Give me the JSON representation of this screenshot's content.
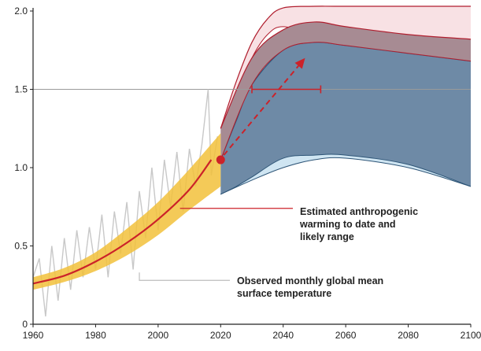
{
  "chart_data": {
    "type": "line",
    "title": "",
    "xlabel": "",
    "ylabel": "",
    "xlim": [
      1960,
      2100
    ],
    "ylim": [
      0,
      2.0
    ],
    "grid": false,
    "x_ticks": [
      "1960",
      "1980",
      "2000",
      "2020",
      "2040",
      "2060",
      "2080",
      "2100"
    ],
    "y_ticks": [
      "0",
      "0.5",
      "1.0",
      "1.5",
      "2.0"
    ],
    "reference_line": {
      "y": 1.5
    },
    "series": [
      {
        "role": "observed-monthly",
        "color": "#c8c8c8",
        "x": [
          1960,
          1962,
          1964,
          1966,
          1968,
          1970,
          1972,
          1974,
          1976,
          1978,
          1980,
          1982,
          1984,
          1986,
          1988,
          1990,
          1992,
          1994,
          1996,
          1998,
          2000,
          2002,
          2004,
          2006,
          2008,
          2010,
          2012,
          2014,
          2016,
          2017,
          2019
        ],
        "y": [
          0.3,
          0.42,
          0.05,
          0.5,
          0.15,
          0.55,
          0.22,
          0.6,
          0.3,
          0.62,
          0.35,
          0.7,
          0.3,
          0.72,
          0.45,
          0.78,
          0.35,
          0.85,
          0.55,
          1.0,
          0.6,
          1.05,
          0.75,
          1.1,
          0.72,
          1.12,
          0.88,
          1.15,
          1.5,
          0.95,
          1.2
        ]
      },
      {
        "role": "estimated-anthropogenic",
        "color": "#cc2229",
        "x": [
          1960,
          1970,
          1980,
          1990,
          2000,
          2010,
          2017
        ],
        "y": [
          0.26,
          0.31,
          0.4,
          0.52,
          0.67,
          0.86,
          1.05
        ]
      }
    ],
    "likely_range_band": {
      "color": "#f2c13b",
      "x": [
        1960,
        1970,
        1980,
        1990,
        2000,
        2010,
        2020
      ],
      "low": [
        0.22,
        0.27,
        0.34,
        0.44,
        0.57,
        0.73,
        0.88
      ],
      "high": [
        0.3,
        0.36,
        0.46,
        0.61,
        0.78,
        0.99,
        1.22
      ]
    },
    "projection_bands": [
      {
        "color_fill": "#f8e1e4",
        "color_edge": "#b01e2e",
        "x": [
          2020,
          2025,
          2030,
          2035,
          2040,
          2050,
          2060,
          2100
        ],
        "low": [
          1.25,
          1.45,
          1.7,
          1.85,
          1.9,
          1.85,
          1.8,
          1.68
        ],
        "high": [
          1.25,
          1.55,
          1.8,
          1.95,
          2.02,
          2.03,
          2.03,
          2.03
        ]
      },
      {
        "color_fill": "#cfe5f2",
        "color_edge": "#2e5577",
        "x": [
          2020,
          2030,
          2040,
          2050,
          2060,
          2080,
          2100
        ],
        "low": [
          0.83,
          0.92,
          1.0,
          1.05,
          1.06,
          1.0,
          0.88
        ],
        "high": [
          0.83,
          0.95,
          1.1,
          1.16,
          1.18,
          1.19,
          1.2
        ]
      },
      {
        "color_fill": "#6e8aa6",
        "color_edge": "#2e5577",
        "x": [
          2020,
          2025,
          2030,
          2040,
          2050,
          2060,
          2080,
          2100
        ],
        "low": [
          0.83,
          0.88,
          0.94,
          1.06,
          1.08,
          1.08,
          1.02,
          0.88
        ],
        "high": [
          1.05,
          1.3,
          1.53,
          1.75,
          1.8,
          1.78,
          1.73,
          1.68
        ]
      },
      {
        "color_fill": "#a78b93",
        "color_edge": "#b01e2e",
        "x": [
          2020,
          2030,
          2040,
          2050,
          2060,
          2080,
          2100
        ],
        "low": [
          1.05,
          1.53,
          1.75,
          1.8,
          1.78,
          1.73,
          1.68
        ],
        "high": [
          1.25,
          1.7,
          1.88,
          1.93,
          1.9,
          1.85,
          1.82
        ]
      }
    ],
    "current_point": {
      "x": 2020,
      "y": 1.05,
      "color": "#cc2229"
    },
    "arrow": {
      "x_from": 2021,
      "y_from": 1.08,
      "x_to": 2047,
      "y_to": 1.7,
      "color": "#cc2229"
    },
    "error_bar": {
      "x_low": 2030,
      "x_high": 2052,
      "y": 1.5,
      "color": "#cc2229"
    },
    "annotations": [
      {
        "lines": [
          "Estimated anthropogenic",
          "warming to date and",
          "likely range"
        ],
        "point_x": 2007,
        "point_y": 0.72
      },
      {
        "lines": [
          "Observed monthly global mean",
          "surface temperature"
        ],
        "point_x": 1994,
        "point_y": 0.28
      }
    ]
  }
}
